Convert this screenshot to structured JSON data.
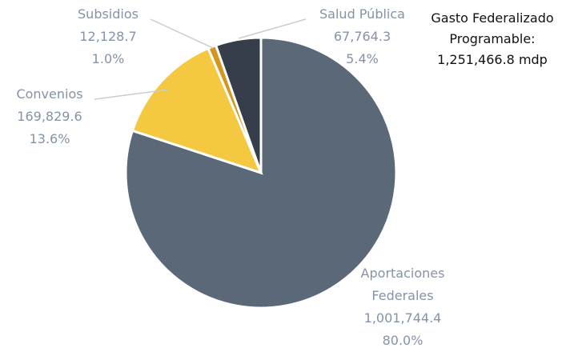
{
  "chart_data": {
    "type": "pie",
    "categories": [
      "Aportaciones Federales",
      "Convenios",
      "Subsidios",
      "Salud Pública"
    ],
    "values": [
      1001744.4,
      169829.6,
      12128.7,
      67764.3
    ],
    "value_labels": [
      "1,001,744.4",
      "169,829.6",
      "12,128.7",
      "67,764.3"
    ],
    "percent_labels": [
      "80.0%",
      "13.6%",
      "1.0%",
      "5.4%"
    ],
    "colors": [
      "#5a6878",
      "#f5c842",
      "#d4961e",
      "#363e4b"
    ],
    "annotation": [
      "Gasto Federalizado",
      "Programable:",
      "1,251,466.8 mdp"
    ]
  }
}
